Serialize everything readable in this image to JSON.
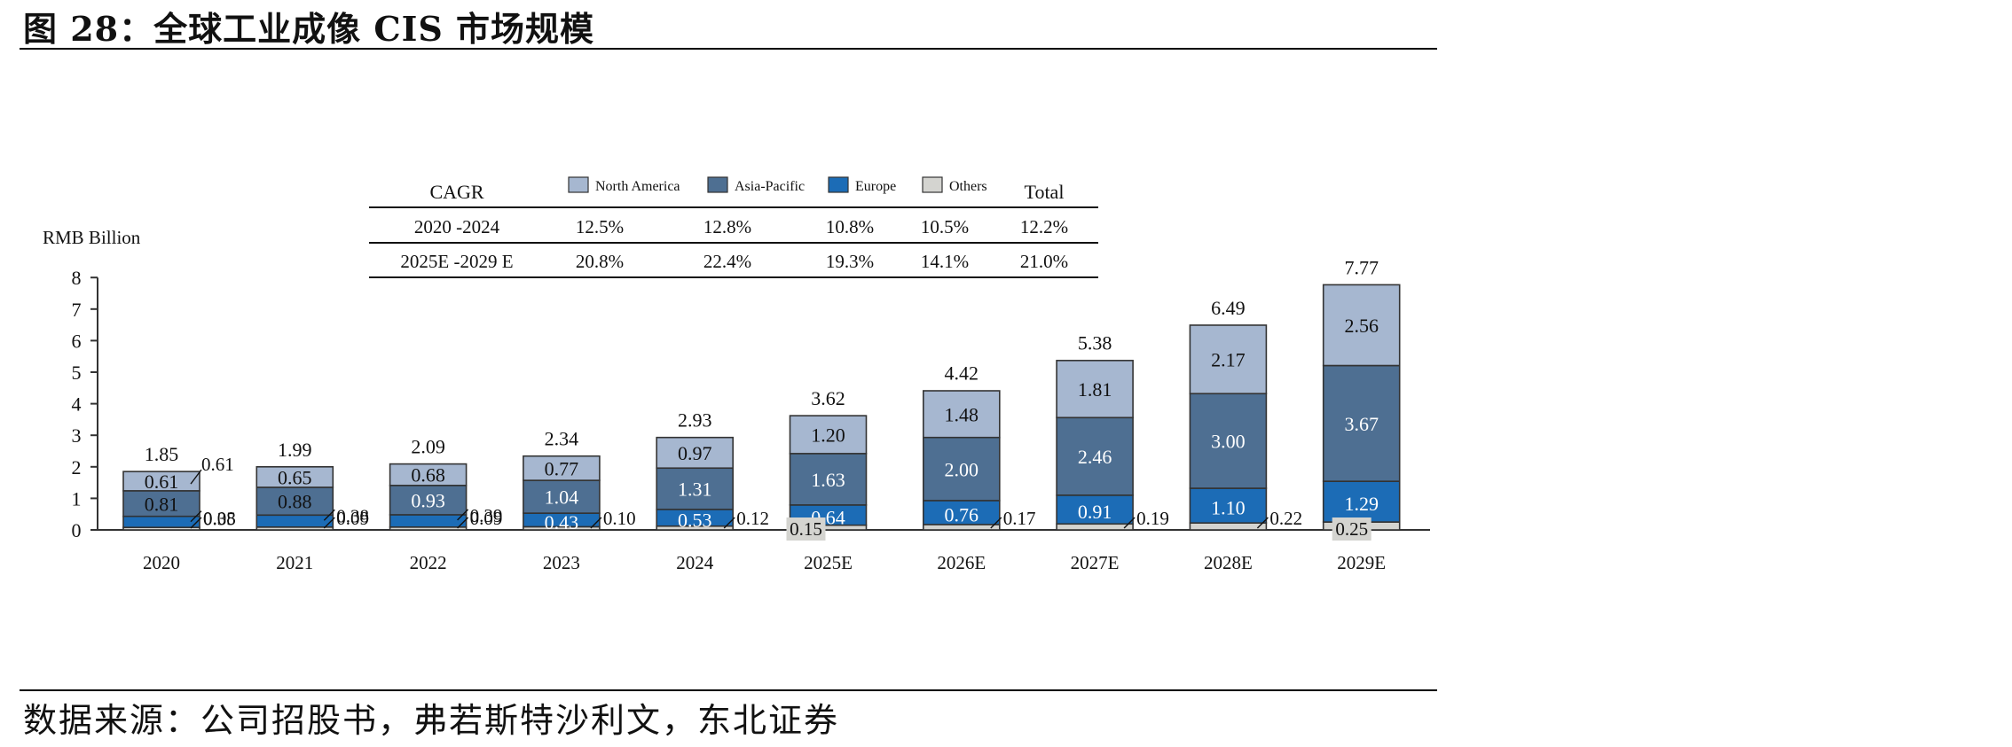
{
  "figure": {
    "title": "图 28：全球工业成像 CIS 市场规模",
    "source": "数据来源：公司招股书，弗若斯特沙利文，东北证券"
  },
  "colors": {
    "north_america": "#a6b7d0",
    "asia_pacific": "#4e6f92",
    "europe": "#1c6cb6",
    "others": "#d4d4d0"
  },
  "cagr_table": {
    "header": [
      "CAGR",
      "North America",
      "Asia-Pacific",
      "Europe",
      "Others",
      "Total"
    ],
    "rows": [
      [
        "2020 -2024",
        "12.5%",
        "12.8%",
        "10.8%",
        "10.5%",
        "12.2%"
      ],
      [
        "2025E -2029 E",
        "20.8%",
        "22.4%",
        "19.3%",
        "14.1%",
        "21.0%"
      ]
    ]
  },
  "chart_data": {
    "type": "bar",
    "stacked": true,
    "ylabel": "RMB Billion",
    "ylim": [
      0,
      8
    ],
    "yticks": [
      0,
      1,
      2,
      3,
      4,
      5,
      6,
      7,
      8
    ],
    "categories": [
      "2020",
      "2021",
      "2022",
      "2023",
      "2024",
      "2025E",
      "2026E",
      "2027E",
      "2028E",
      "2029E"
    ],
    "series": [
      {
        "name": "Others",
        "values": [
          0.08,
          0.09,
          0.09,
          0.1,
          0.12,
          0.15,
          0.17,
          0.19,
          0.22,
          0.25
        ]
      },
      {
        "name": "Europe",
        "values": [
          0.35,
          0.38,
          0.39,
          0.43,
          0.53,
          0.64,
          0.76,
          0.91,
          1.1,
          1.29
        ]
      },
      {
        "name": "Asia-Pacific",
        "values": [
          0.81,
          0.88,
          0.93,
          1.04,
          1.31,
          1.63,
          2.0,
          2.46,
          3.0,
          3.67
        ]
      },
      {
        "name": "North America",
        "values": [
          0.61,
          0.65,
          0.68,
          0.77,
          0.97,
          1.2,
          1.48,
          1.81,
          2.17,
          2.56
        ]
      }
    ],
    "totals": [
      1.85,
      1.99,
      2.09,
      2.34,
      2.93,
      3.62,
      4.42,
      5.38,
      6.49,
      7.77
    ],
    "labels": {
      "others": [
        "0.08",
        "0.09",
        "0.09",
        "0.10",
        "0.12",
        "0.15",
        "0.17",
        "0.19",
        "0.22",
        "0.25"
      ],
      "europe": [
        "0.35",
        "0.38",
        "0.39",
        "0.43",
        "0.53",
        "0.64",
        "0.76",
        "0.91",
        "1.10",
        "1.29"
      ],
      "asia_pacific": [
        "0.81",
        "0.88",
        "0.93",
        "1.04",
        "1.31",
        "1.63",
        "2.00",
        "2.46",
        "3.00",
        "3.67"
      ],
      "north_america": [
        "0.61",
        "0.65",
        "0.68",
        "0.77",
        "0.97",
        "1.20",
        "1.48",
        "1.81",
        "2.17",
        "2.56"
      ],
      "totals": [
        "1.85",
        "1.99",
        "2.09",
        "2.34",
        "2.93",
        "3.62",
        "4.42",
        "5.38",
        "6.49",
        "7.77"
      ]
    },
    "grid": false
  }
}
